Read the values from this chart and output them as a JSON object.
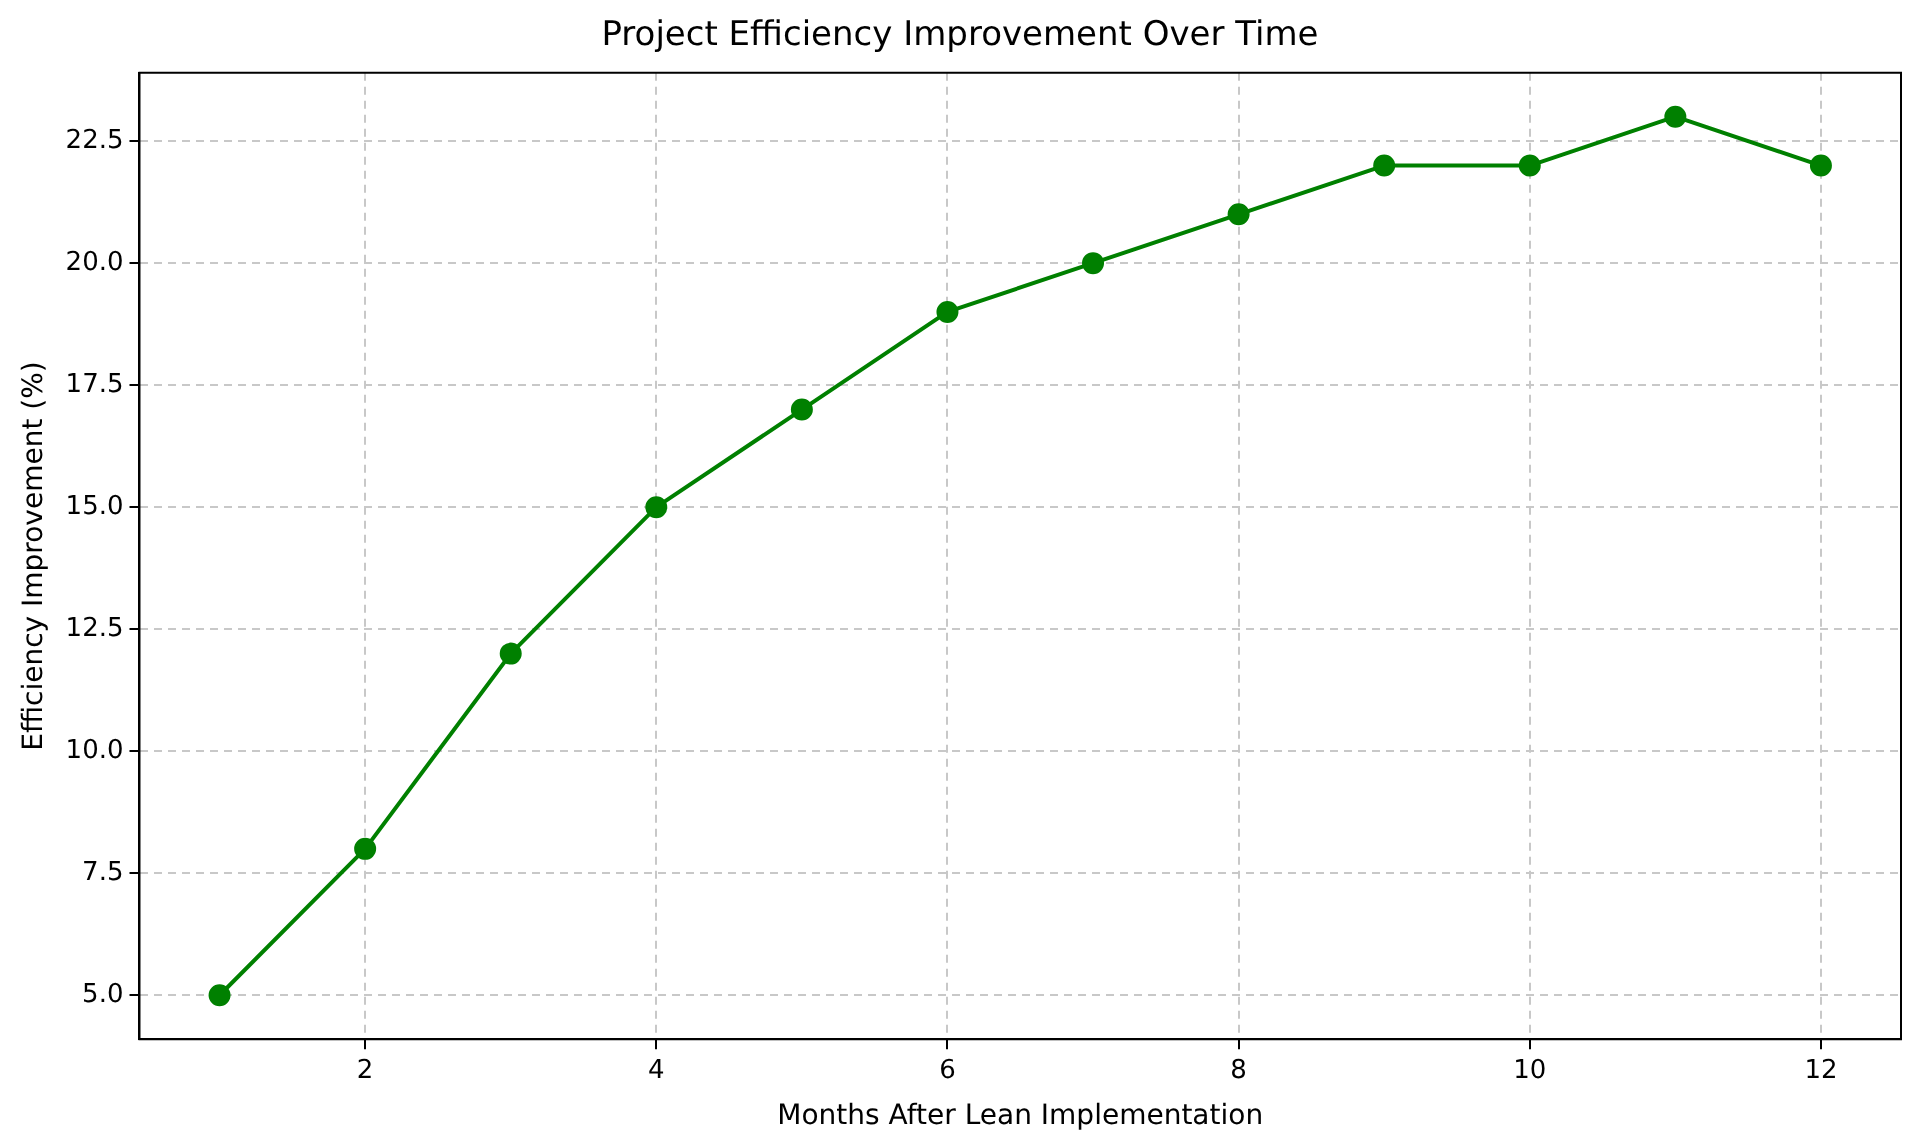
{
  "chart_data": {
    "type": "line",
    "title": "Project Efficiency Improvement Over Time",
    "xlabel": "Months After Lean Implementation",
    "ylabel": "Efficiency Improvement (%)",
    "x": [
      1,
      2,
      3,
      4,
      5,
      6,
      7,
      8,
      9,
      10,
      11,
      12
    ],
    "series": [
      {
        "color": "#008000",
        "values": [
          5,
          8,
          12,
          15,
          17,
          19,
          20,
          21,
          22,
          22,
          23,
          22
        ]
      }
    ],
    "xlim": [
      0.45,
      12.55
    ],
    "xticks": [
      2,
      4,
      6,
      8,
      10,
      12
    ],
    "ylim": [
      4.1,
      23.9
    ],
    "yticks": [
      {
        "value": 5,
        "label": "5.0"
      },
      {
        "value": 7.5,
        "label": "7.5"
      },
      {
        "value": 10,
        "label": "10.0"
      },
      {
        "value": 12.5,
        "label": "12.5"
      },
      {
        "value": 15,
        "label": "15.0"
      },
      {
        "value": 17.5,
        "label": "17.5"
      },
      {
        "value": 20,
        "label": "20.0"
      },
      {
        "value": 22.5,
        "label": "22.5"
      }
    ],
    "grid": true,
    "marker": "circle",
    "line_style": "solid",
    "legend": false
  }
}
